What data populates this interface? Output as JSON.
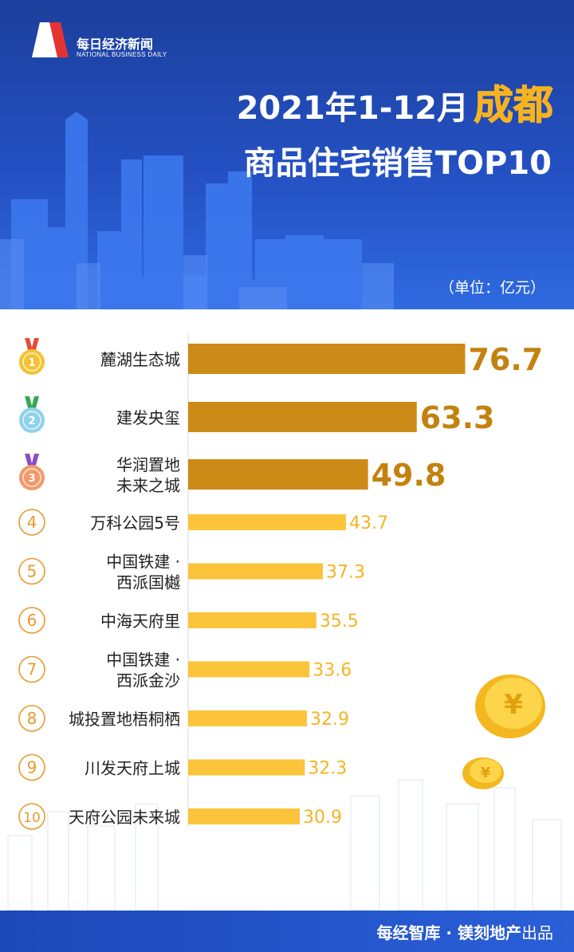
{
  "brand": {
    "name": "每日经济新闻",
    "name_en": "NATIONAL BUSINESS DAILY"
  },
  "title": {
    "line1": "2021年1-12月",
    "city": "成都",
    "line2": "商品住宅销售TOP10"
  },
  "unit": "（单位：亿元）",
  "footer": {
    "main": "每经智库 · 镁刻地产",
    "suffix": "出品"
  },
  "colors": {
    "bar_top3": "#cc8a16",
    "bar_rest": "#fbc43a",
    "label_top3": "#c3820f",
    "label_rest": "#f6b323",
    "rank_circle": "#e89a2c"
  },
  "chart_data": {
    "type": "bar",
    "orientation": "horizontal",
    "categories": [
      [
        "麓湖生态城"
      ],
      [
        "建发央玺"
      ],
      [
        "华润置地",
        "未来之城"
      ],
      [
        "万科公园5号"
      ],
      [
        "中国铁建 ·",
        "西派国樾"
      ],
      [
        "中海天府里"
      ],
      [
        "中国铁建 ·",
        "西派金沙"
      ],
      [
        "城投置地梧桐栖"
      ],
      [
        "川发天府上城"
      ],
      [
        "天府公园未来城"
      ]
    ],
    "values": [
      76.7,
      63.3,
      49.8,
      43.7,
      37.3,
      35.5,
      33.6,
      32.9,
      32.3,
      30.9
    ],
    "value_labels": [
      "76.7",
      "63.3",
      "49.8",
      "43.7",
      "37.3",
      "35.5",
      "33.6",
      "32.9",
      "32.3",
      "30.9"
    ],
    "ranks": [
      "1",
      "2",
      "3",
      "4",
      "5",
      "6",
      "7",
      "8",
      "9",
      "10"
    ],
    "medal_colors": [
      "#f5c233",
      "#8fd1ec",
      "#f29a6a"
    ],
    "ribbon_colors": [
      "#e44b3a",
      "#34a853",
      "#8b4cc4"
    ]
  }
}
